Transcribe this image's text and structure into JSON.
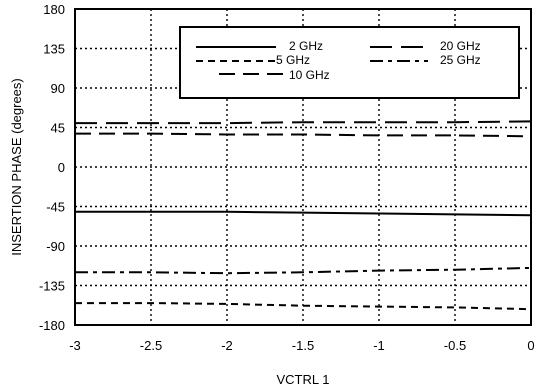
{
  "chart_data": {
    "type": "line",
    "title": "",
    "xlabel": "VCTRL 1",
    "ylabel": "INSERTION PHASE (degrees)",
    "xlim": [
      -3,
      0
    ],
    "ylim": [
      -180,
      180
    ],
    "x_ticks": [
      "-3",
      "-2.5",
      "-2",
      "-1.5",
      "-1",
      "-0.5",
      "0"
    ],
    "x_tick_values": [
      -3,
      -2.5,
      -2,
      -1.5,
      -1,
      -0.5,
      0
    ],
    "y_ticks": [
      "180",
      "135",
      "90",
      "45",
      "0",
      "-45",
      "-90",
      "-135",
      "-180"
    ],
    "y_tick_values": [
      180,
      135,
      90,
      45,
      0,
      -45,
      -90,
      -135,
      -180
    ],
    "grid": true,
    "legend_position": "top-right",
    "series": [
      {
        "name": "2 GHz",
        "dash": "solid",
        "x": [
          -3,
          -2.5,
          -2,
          -1.5,
          -1,
          -0.5,
          0
        ],
        "values": [
          -51,
          -51,
          -51,
          -52,
          -53,
          -54,
          -55
        ]
      },
      {
        "name": "5 GHz",
        "dash": "short",
        "x": [
          -3,
          -2.5,
          -2,
          -1.5,
          -1,
          -0.5,
          0
        ],
        "values": [
          -155,
          -155,
          -156,
          -158,
          -159,
          -160,
          -162
        ]
      },
      {
        "name": "10 GHz",
        "dash": "long",
        "x": [
          -3,
          -2.5,
          -2,
          -1.5,
          -1,
          -0.5,
          0
        ],
        "values": [
          38,
          38,
          37,
          37,
          36,
          36,
          35
        ]
      },
      {
        "name": "20 GHz",
        "dash": "longer",
        "x": [
          -3,
          -2.5,
          -2,
          -1.5,
          -1,
          -0.5,
          0
        ],
        "values": [
          50,
          50,
          50,
          51,
          51,
          51,
          52
        ]
      },
      {
        "name": "25 GHz",
        "dash": "dashdot",
        "x": [
          -3,
          -2.5,
          -2,
          -1.5,
          -1,
          -0.5,
          0
        ],
        "values": [
          -120,
          -120,
          -121,
          -120,
          -118,
          -117,
          -115
        ]
      }
    ]
  }
}
